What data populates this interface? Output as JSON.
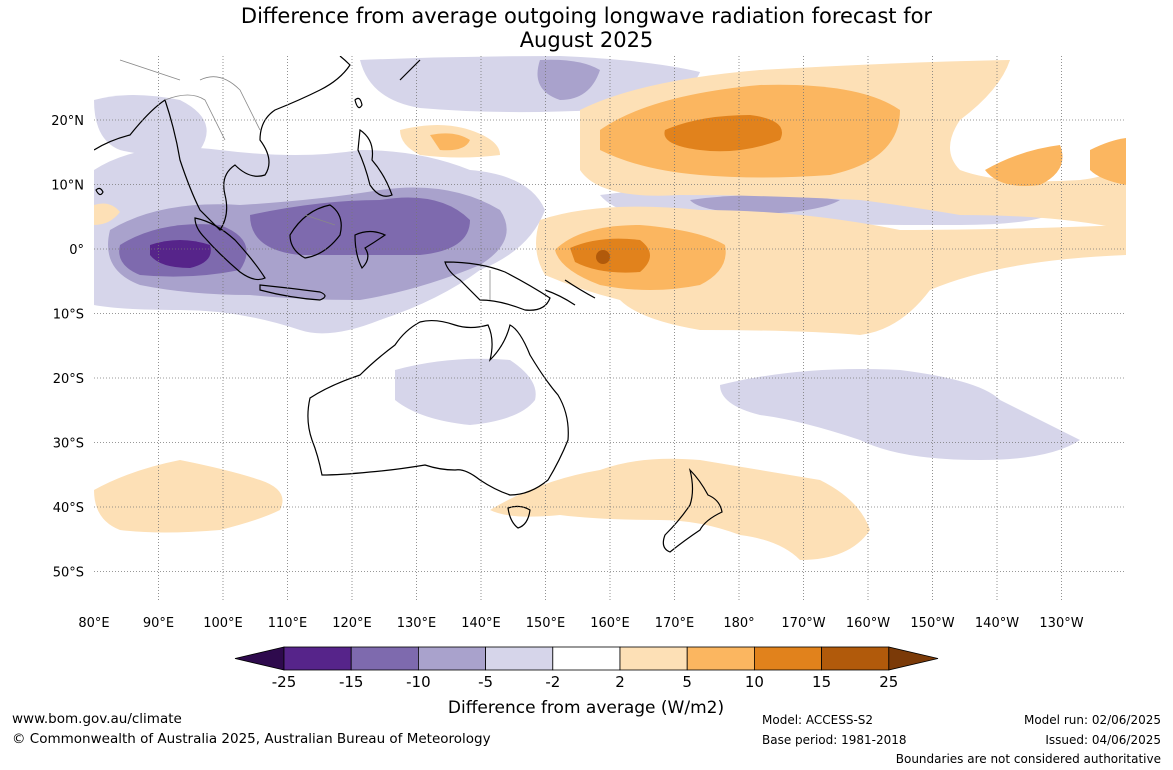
{
  "title": {
    "line1": "Difference from average outgoing longwave radiation forecast for",
    "line2": "August 2025"
  },
  "map": {
    "lat_labels": [
      "20°N",
      "10°N",
      "0°",
      "10°S",
      "20°S",
      "30°S",
      "40°S",
      "50°S"
    ],
    "lon_labels": [
      "80°E",
      "90°E",
      "100°E",
      "110°E",
      "120°E",
      "130°E",
      "140°E",
      "150°E",
      "160°E",
      "170°E",
      "180°",
      "170°W",
      "160°W",
      "150°W",
      "140°W",
      "130°W"
    ]
  },
  "colorbar": {
    "labels": [
      "-25",
      "-15",
      "-10",
      "-5",
      "-2",
      "2",
      "5",
      "10",
      "15",
      "25"
    ],
    "colors": [
      "#2e0a4d",
      "#56248a",
      "#7e6aae",
      "#a9a2cc",
      "#d6d5ea",
      "#ffffff",
      "#fde0b6",
      "#fbb660",
      "#e1821c",
      "#b15a0b",
      "#7b3a08"
    ],
    "title": "Difference from average (W/m2)"
  },
  "footer": {
    "url": "www.bom.gov.au/climate",
    "copyright": "© Commonwealth of Australia 2025, Australian Bureau of Meteorology",
    "model": "Model: ACCESS-S2",
    "base_period": "Base period: 1981-2018",
    "model_run": "Model run: 02/06/2025",
    "issued": "Issued: 04/06/2025",
    "boundaries_note": "Boundaries are not considered authoritative"
  }
}
